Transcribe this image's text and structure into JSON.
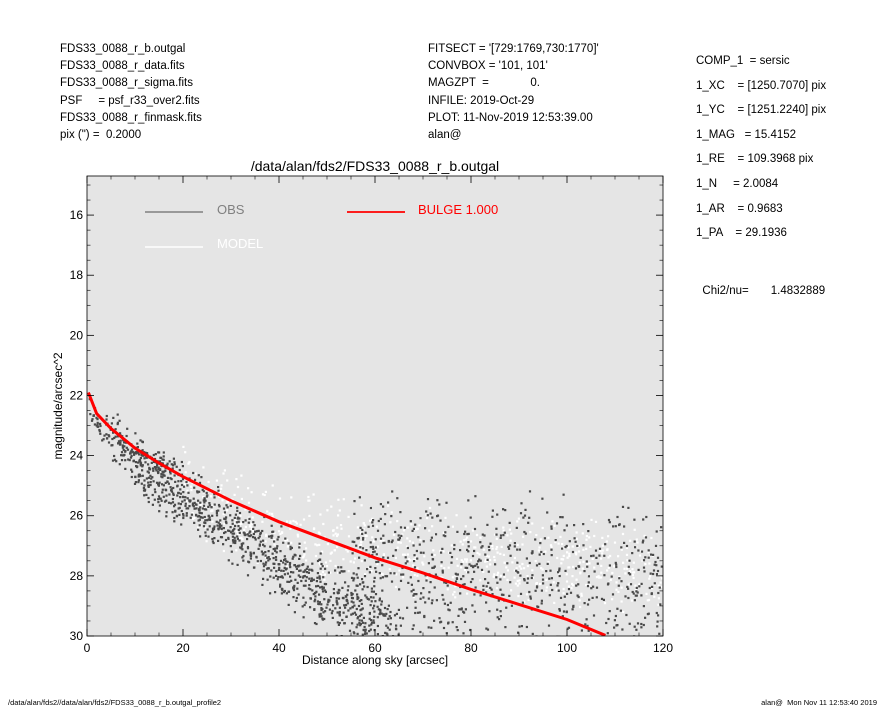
{
  "header_left": [
    "FDS33_0088_r_b.outgal",
    "FDS33_0088_r_data.fits",
    "FDS33_0088_r_sigma.fits",
    "PSF     = psf_r33_over2.fits",
    "FDS33_0088_r_finmask.fits",
    "pix (\") =  0.2000"
  ],
  "header_mid": [
    "FITSECT = '[729:1769,730:1770]'",
    "CONVBOX = '101, 101'",
    "MAGZPT  =             0.",
    "INFILE: 2019-Oct-29",
    "PLOT: 11-Nov-2019 12:53:39.00",
    "alan@"
  ],
  "header_right": [
    "COMP_1  = sersic",
    "1_XC    = [1250.7070] pix",
    "1_YC    = [1251.2240] pix",
    "1_MAG   = 15.4152",
    "1_RE    = 109.3968 pix",
    "1_N     = 2.0084",
    "1_AR    = 0.9683",
    "1_PA    = 29.1936"
  ],
  "chi": {
    "label": "Chi2/nu=",
    "value": "1.4832889"
  },
  "footer": {
    "left": "/data/alan/fds2//data/alan/fds2/FDS33_0088_r_b.outgal_profile2",
    "right": "alan@  Mon Nov 11 12:53:40 2019"
  },
  "colors": {
    "panel": "#e5e5e5",
    "obs": "#4a4a4a",
    "obs_legend": "#808080",
    "model": "#ffffff",
    "bulge": "#ff0000"
  },
  "chart_data": {
    "type": "scatter",
    "title": "/data/alan/fds2/FDS33_0088_r_b.outgal",
    "xlabel": "Distance along sky [arcsec]",
    "ylabel": "magnitude/arcsec^2",
    "xlim": [
      0,
      120
    ],
    "ylim": [
      30,
      14.7
    ],
    "y_inverted": true,
    "grid": false,
    "legend_placement": "top-left",
    "x_ticks": [
      "0",
      "20",
      "40",
      "60",
      "80",
      "100",
      "120"
    ],
    "y_ticks": [
      "16",
      "18",
      "20",
      "22",
      "24",
      "26",
      "28",
      "30"
    ],
    "series": [
      {
        "name": "OBS",
        "kind": "points",
        "profiles": [
          {
            "x": [
              0.5,
              2,
              4,
              6,
              8,
              10,
              12,
              14,
              16,
              18,
              20
            ],
            "y": [
              22.3,
              22.9,
              23.2,
              23.5,
              23.7,
              23.9,
              24.05,
              24.2,
              24.3,
              24.4,
              24.55
            ]
          },
          {
            "x": [
              4,
              8,
              12,
              16,
              20,
              25,
              30,
              35,
              40,
              45,
              50,
              55,
              60
            ],
            "y": [
              23.0,
              23.9,
              24.5,
              25.0,
              25.4,
              26.0,
              26.6,
              27.2,
              27.8,
              28.4,
              29.0,
              29.5,
              30.0
            ]
          },
          {
            "x": [
              10,
              15,
              20,
              25,
              30,
              35,
              40,
              45,
              50,
              55,
              60,
              65
            ],
            "y": [
              24.3,
              24.9,
              25.3,
              25.8,
              26.3,
              26.8,
              27.3,
              27.8,
              28.3,
              28.8,
              29.3,
              29.8
            ]
          },
          {
            "x": [
              55,
              60,
              70,
              80,
              90,
              100,
              110,
              120
            ],
            "y": [
              27.5,
              27.7,
              27.9,
              28.0,
              28.1,
              28.2,
              28.3,
              28.4
            ]
          }
        ]
      },
      {
        "name": "MODEL",
        "kind": "points",
        "profiles": [
          {
            "x": [
              20,
              30,
              40,
              50,
              60,
              70,
              80,
              90,
              100,
              110,
              120
            ],
            "y": [
              24.8,
              25.6,
              26.1,
              26.4,
              26.6,
              26.8,
              27.0,
              27.1,
              27.2,
              27.3,
              27.4
            ]
          }
        ]
      },
      {
        "name": "BULGE  1.000",
        "kind": "line",
        "x": [
          0.3,
          2,
          5,
          10,
          15,
          20,
          25,
          30,
          40,
          50,
          60,
          70,
          80,
          90,
          100,
          108
        ],
        "y": [
          21.9,
          22.6,
          23.1,
          23.75,
          24.25,
          24.7,
          25.1,
          25.5,
          26.2,
          26.8,
          27.4,
          27.9,
          28.45,
          28.95,
          29.45,
          29.98
        ]
      }
    ]
  }
}
